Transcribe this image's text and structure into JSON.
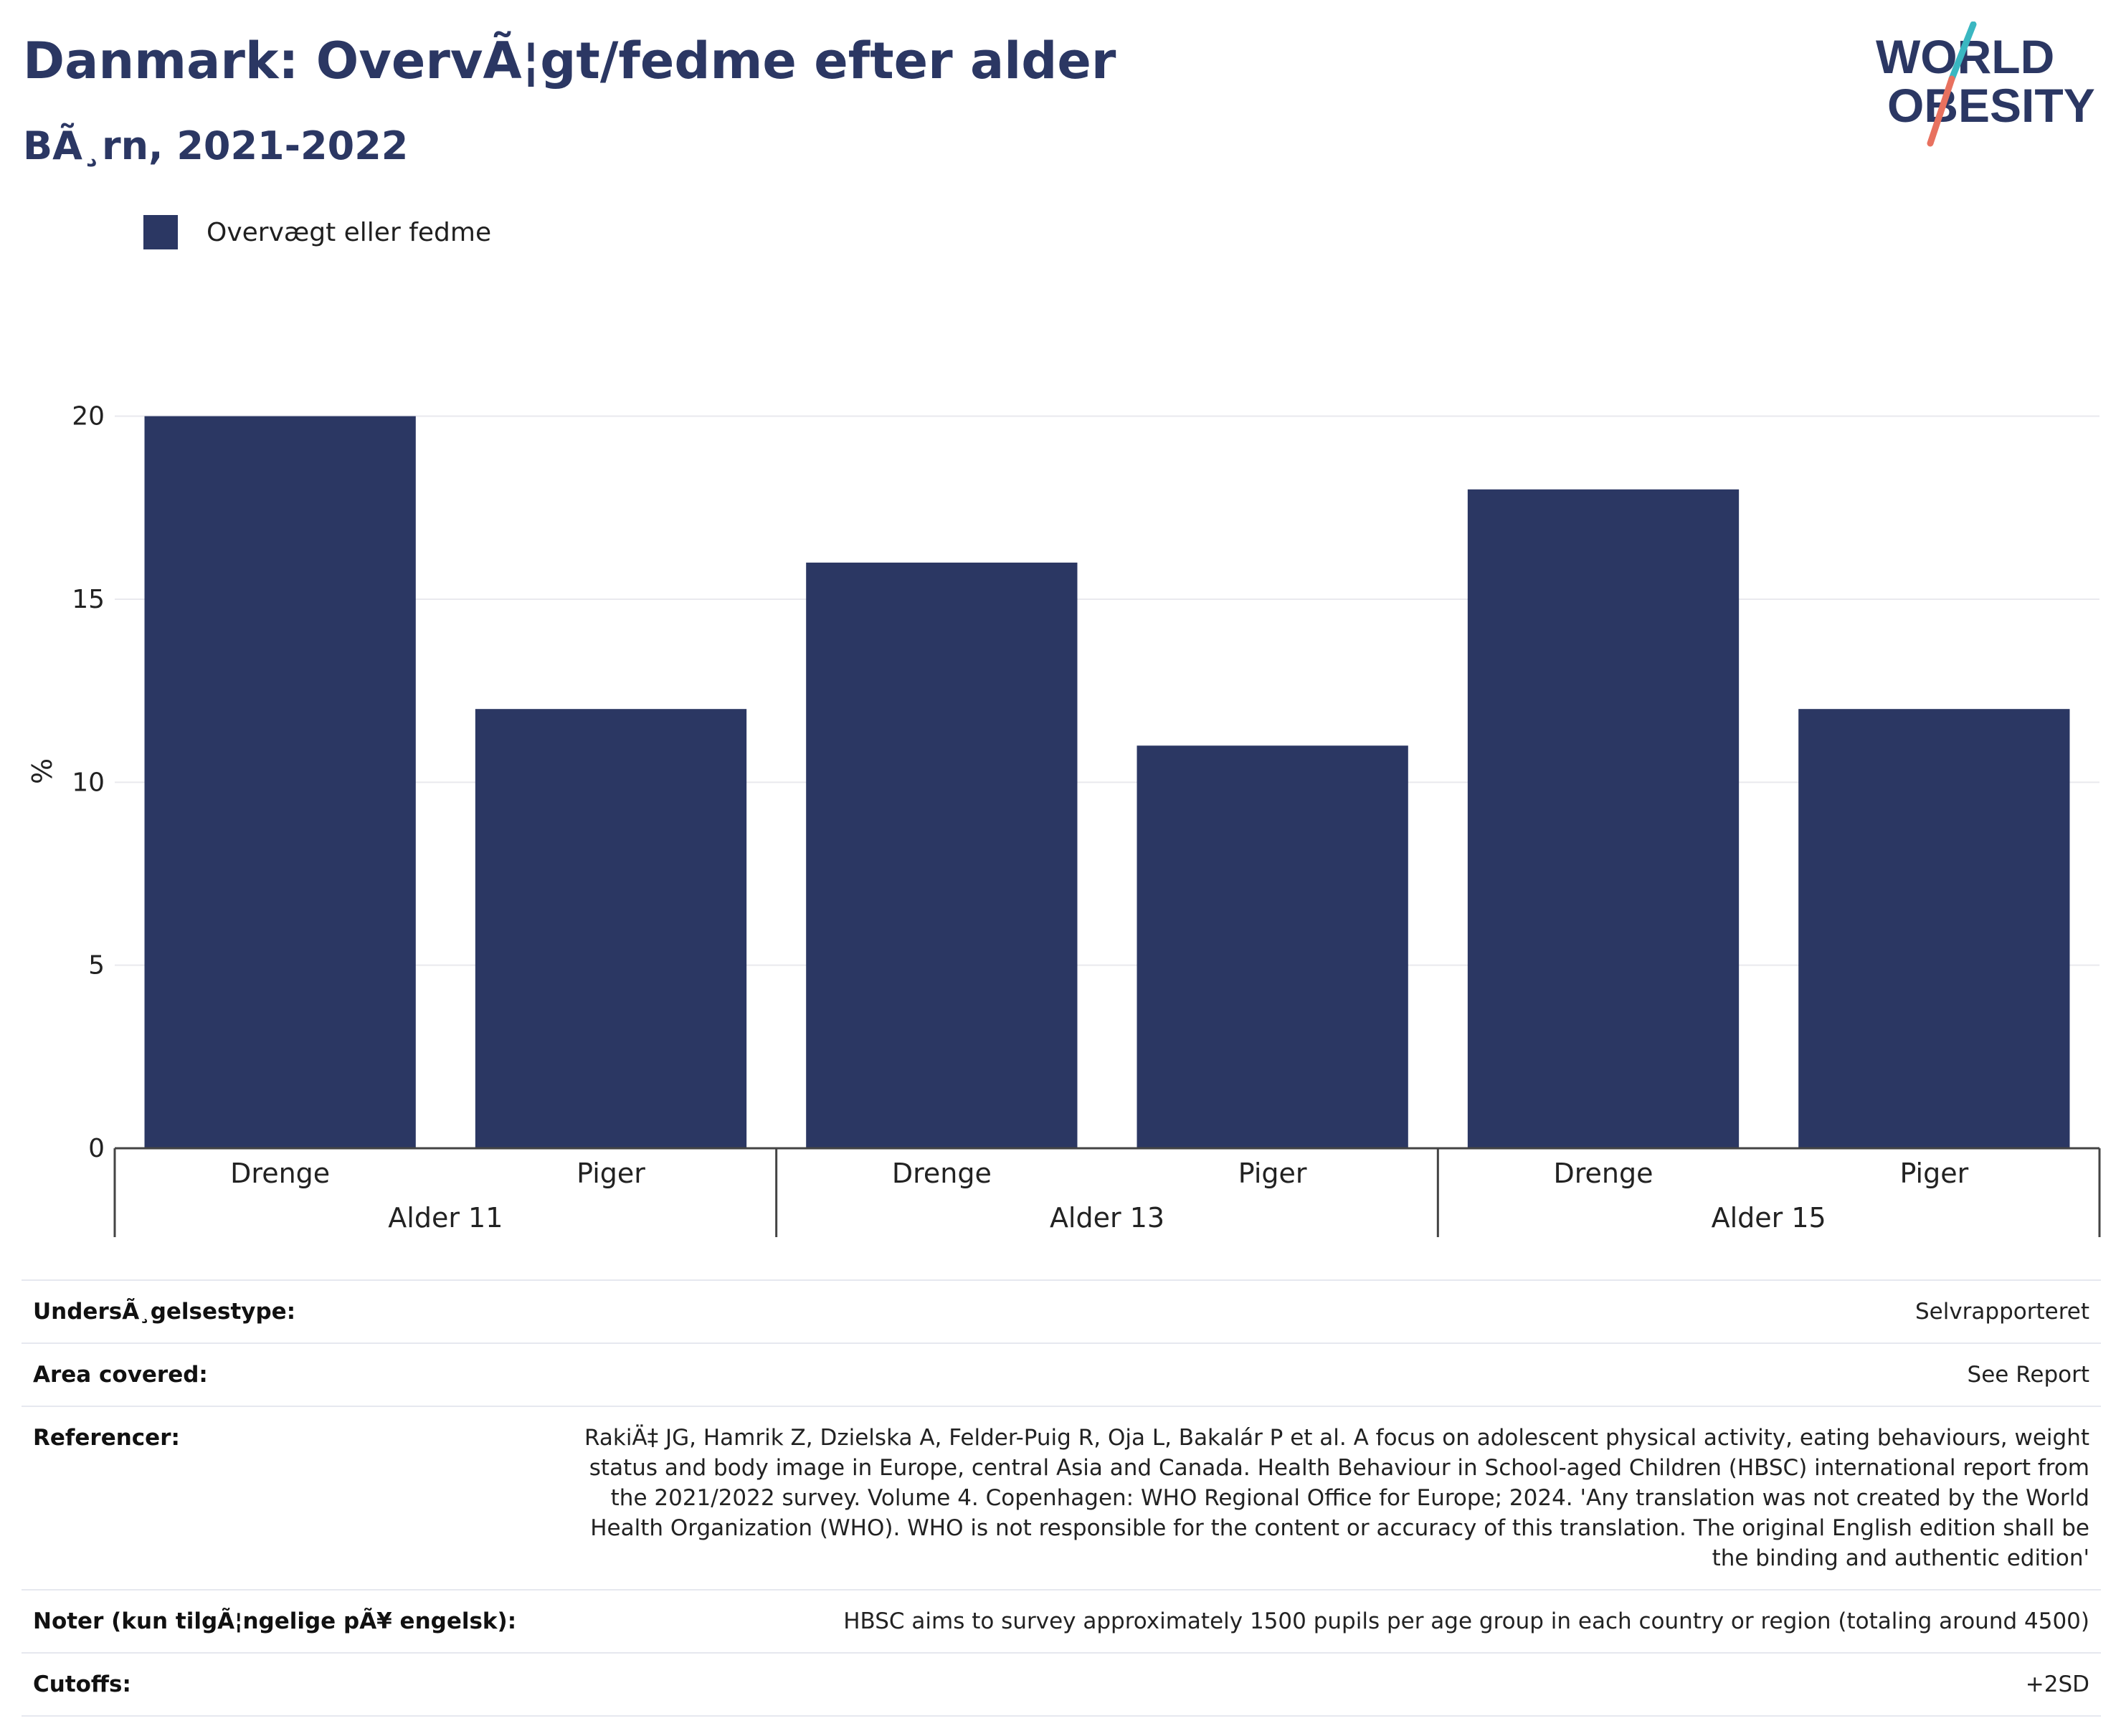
{
  "header": {
    "title": "Danmark: OvervÃ¦gt/fedme efter alder",
    "subtitle": "BÃ¸rn, 2021-2022"
  },
  "logo": {
    "line1": "WORLD",
    "line2": "OBESITY"
  },
  "colors": {
    "bar": "#2b3763",
    "title": "#2b3763",
    "logo_teal": "#3ab7c1",
    "logo_coral": "#e8715f"
  },
  "legend": {
    "label": "Overvægt eller fedme"
  },
  "chart_data": {
    "type": "bar",
    "ylabel": "%",
    "ylim": [
      0,
      20.6
    ],
    "yticks": [
      0,
      5,
      10,
      15,
      20
    ],
    "grid": true,
    "legend_position": "top-left",
    "groups": [
      "Alder 11",
      "Alder 13",
      "Alder 15"
    ],
    "categories": [
      "Drenge",
      "Piger",
      "Drenge",
      "Piger",
      "Drenge",
      "Piger"
    ],
    "series": [
      {
        "name": "Overvægt eller fedme",
        "values": [
          20,
          12,
          16,
          11,
          18,
          12
        ]
      }
    ]
  },
  "meta": [
    {
      "key": "UndersÃ¸gelsestype:",
      "value": "Selvrapporteret"
    },
    {
      "key": "Area covered:",
      "value": "See Report"
    },
    {
      "key": "Referencer:",
      "value": "RakiÄ‡ JG, Hamrik Z, Dzielska A, Felder-Puig R, Oja L, Bakalár P et al. A focus on adolescent physical activity, eating behaviours, weight status and body image in Europe, central Asia and Canada. Health Behaviour in School-aged Children (HBSC) international report from the 2021/2022 survey. Volume 4. Copenhagen: WHO Regional Office for Europe; 2024. 'Any translation was not created by the World Health Organization (WHO). WHO is not responsible for the content or accuracy of this translation. The original English edition shall be the binding and authentic edition'"
    },
    {
      "key": "Noter (kun tilgÃ¦ngelige pÃ¥ engelsk):",
      "value": "HBSC aims to survey approximately 1500 pupils per age group in each country or region (totaling around 4500)"
    },
    {
      "key": "Cutoffs:",
      "value": "+2SD"
    }
  ]
}
